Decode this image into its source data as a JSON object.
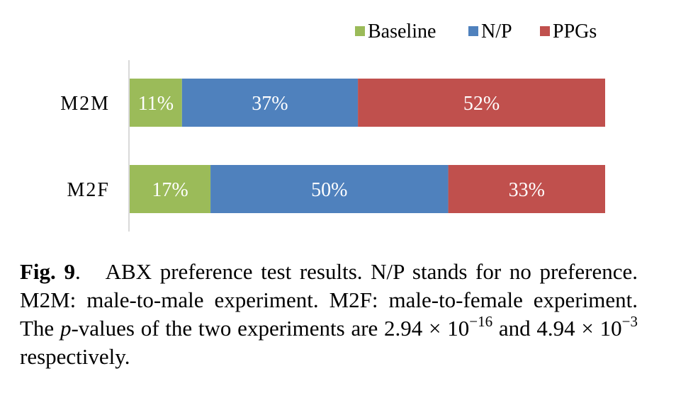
{
  "chart_data": {
    "type": "bar",
    "orientation": "horizontal",
    "stacked": true,
    "categories": [
      "M2M",
      "M2F"
    ],
    "series": [
      {
        "name": "Baseline",
        "values": [
          11,
          17
        ],
        "labels": [
          "11%",
          "17%"
        ],
        "color": "#9bbb59"
      },
      {
        "name": "N/P",
        "values": [
          37,
          50
        ],
        "labels": [
          "37%",
          "50%"
        ],
        "color": "#4f81bd"
      },
      {
        "name": "PPGs",
        "values": [
          52,
          33
        ],
        "labels": [
          "52%",
          "33%"
        ],
        "color": "#c0504d"
      }
    ],
    "xlim": [
      0,
      100
    ],
    "grid": false,
    "legend": "top-right"
  },
  "caption": {
    "fig_label": "Fig. 9",
    "fig_punct": ".",
    "text_1": "ABX preference test results.  N/P stands for no preference. M2M: male-to-male experiment. M2F: male-to-female experiment. The ",
    "p_symbol": "p",
    "text_2": "-values of the two experiments are 2.94 × 10",
    "exp_1": "−16",
    "text_3": " and 4.94 × 10",
    "exp_2": "−3",
    "text_4": " respectively."
  }
}
